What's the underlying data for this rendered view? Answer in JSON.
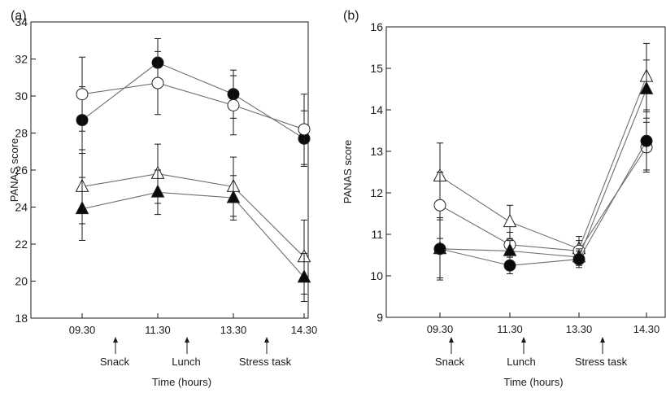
{
  "chart_data": [
    {
      "type": "line",
      "panel_label": "(a)",
      "categories": [
        "09.30",
        "11.30",
        "13.30",
        "14.30"
      ],
      "xlabel": "Time (hours)",
      "ylabel": "PANAS score",
      "ylim": [
        18,
        34
      ],
      "yticks": [
        18,
        20,
        22,
        24,
        26,
        28,
        30,
        32,
        34
      ],
      "annotations": [
        "Snack",
        "Lunch",
        "Stress task"
      ],
      "grid": false,
      "series": [
        {
          "marker": "filled-circle",
          "values": [
            28.7,
            31.8,
            30.1,
            27.7
          ],
          "error": [
            1.8,
            1.3,
            1.3,
            1.5
          ]
        },
        {
          "marker": "open-circle",
          "values": [
            30.1,
            30.7,
            29.5,
            28.2
          ],
          "error": [
            2.0,
            1.7,
            1.6,
            1.9
          ]
        },
        {
          "marker": "open-triangle",
          "values": [
            25.1,
            25.8,
            25.1,
            21.3
          ],
          "error": [
            2.0,
            1.6,
            1.6,
            2.0
          ]
        },
        {
          "marker": "filled-triangle",
          "values": [
            23.9,
            24.8,
            24.5,
            20.2
          ],
          "error": [
            1.7,
            1.2,
            1.2,
            1.3
          ]
        }
      ]
    },
    {
      "type": "line",
      "panel_label": "(b)",
      "categories": [
        "09.30",
        "11.30",
        "13.30",
        "14.30"
      ],
      "xlabel": "Time (hours)",
      "ylabel": "PANAS score",
      "ylim": [
        9,
        16
      ],
      "yticks": [
        9,
        10,
        11,
        12,
        13,
        14,
        15,
        16
      ],
      "annotations": [
        "Snack",
        "Lunch",
        "Stress task"
      ],
      "grid": false,
      "series": [
        {
          "marker": "open-triangle",
          "values": [
            12.4,
            11.3,
            10.65,
            14.8
          ],
          "error": [
            0.8,
            0.4,
            0.3,
            0.8
          ]
        },
        {
          "marker": "open-circle",
          "values": [
            11.7,
            10.75,
            10.6,
            13.1
          ],
          "error": [
            0.8,
            0.3,
            0.25,
            0.6
          ]
        },
        {
          "marker": "filled-triangle",
          "values": [
            10.65,
            10.6,
            10.45,
            14.5
          ],
          "error": [
            0.75,
            0.25,
            0.2,
            0.7
          ]
        },
        {
          "marker": "filled-circle",
          "values": [
            10.65,
            10.25,
            10.4,
            13.25
          ],
          "error": [
            0.7,
            0.2,
            0.2,
            0.7
          ]
        }
      ]
    }
  ]
}
